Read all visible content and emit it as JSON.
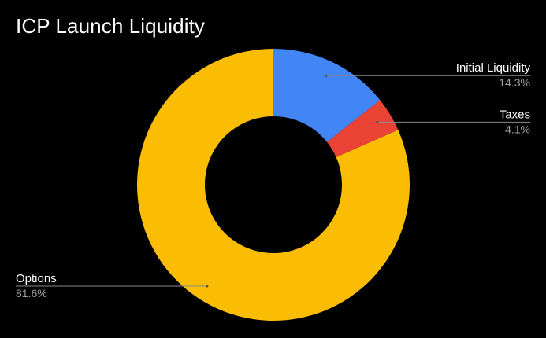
{
  "chart_data": {
    "type": "pie",
    "style": "donut",
    "title": "ICP Launch Liquidity",
    "slices": [
      {
        "label": "Initial Liquidity",
        "value": 14.3,
        "value_label": "14.3%",
        "color": "#4285f4",
        "label_side": "right"
      },
      {
        "label": "Taxes",
        "value": 4.1,
        "value_label": "4.1%",
        "color": "#ea4335",
        "label_side": "right"
      },
      {
        "label": "Options",
        "value": 81.6,
        "value_label": "81.6%",
        "color": "#fbbc04",
        "label_side": "left"
      }
    ],
    "background": "#000000"
  }
}
